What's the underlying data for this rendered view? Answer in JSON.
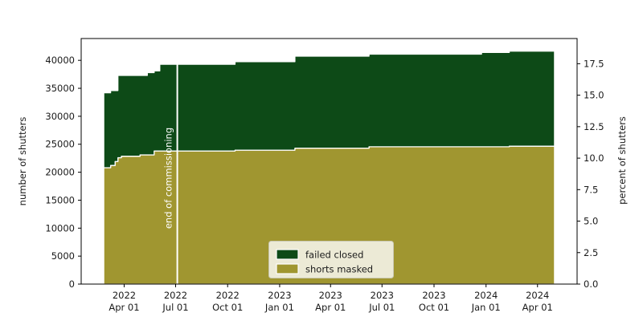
{
  "chart_data": {
    "type": "area",
    "stacked": true,
    "step": true,
    "title": "",
    "xlabel": "",
    "ylabel_left": "number of shutters",
    "ylabel_right": "percent of shutters",
    "ylim_left": [
      0,
      43900
    ],
    "ylim_right": [
      0,
      19.5
    ],
    "xlim": [
      "2022-01-15",
      "2024-06-10"
    ],
    "x_start": "2022-02-24",
    "x_end": "2024-05-01",
    "y_ticks_left": [
      0,
      5000,
      10000,
      15000,
      20000,
      25000,
      30000,
      35000,
      40000
    ],
    "y_ticks_right": [
      0.0,
      2.5,
      5.0,
      7.5,
      10.0,
      12.5,
      15.0,
      17.5
    ],
    "x_ticks": [
      {
        "date": "2022-04-01",
        "year": "2022",
        "day": "Apr 01"
      },
      {
        "date": "2022-07-01",
        "year": "2022",
        "day": "Jul 01"
      },
      {
        "date": "2022-10-01",
        "year": "2022",
        "day": "Oct 01"
      },
      {
        "date": "2023-01-01",
        "year": "2023",
        "day": "Jan 01"
      },
      {
        "date": "2023-04-01",
        "year": "2023",
        "day": "Apr 01"
      },
      {
        "date": "2023-07-01",
        "year": "2023",
        "day": "Jul 01"
      },
      {
        "date": "2023-10-01",
        "year": "2023",
        "day": "Oct 01"
      },
      {
        "date": "2024-01-01",
        "year": "2024",
        "day": "Jan 01"
      },
      {
        "date": "2024-04-01",
        "year": "2024",
        "day": "Apr 01"
      }
    ],
    "series_names": [
      "shorts masked",
      "failed closed"
    ],
    "points": [
      {
        "date": "2022-02-24",
        "shorts_masked": 20800,
        "failed_closed": 13400,
        "total": 34200
      },
      {
        "date": "2022-03-08",
        "shorts_masked": 21200,
        "failed_closed": 13400,
        "total": 34600
      },
      {
        "date": "2022-03-16",
        "shorts_masked": 21900,
        "failed_closed": 12700,
        "total": 34600
      },
      {
        "date": "2022-03-21",
        "shorts_masked": 22600,
        "failed_closed": 14700,
        "total": 37300
      },
      {
        "date": "2022-03-27",
        "shorts_masked": 22850,
        "failed_closed": 14450,
        "total": 37300
      },
      {
        "date": "2022-04-29",
        "shorts_masked": 23100,
        "failed_closed": 14200,
        "total": 37300
      },
      {
        "date": "2022-05-12",
        "shorts_masked": 23100,
        "failed_closed": 14700,
        "total": 37800
      },
      {
        "date": "2022-05-24",
        "shorts_masked": 23800,
        "failed_closed": 14300,
        "total": 38100
      },
      {
        "date": "2022-06-03",
        "shorts_masked": 23800,
        "failed_closed": 15500,
        "total": 39300
      },
      {
        "date": "2022-10-14",
        "shorts_masked": 23950,
        "failed_closed": 15800,
        "total": 39750
      },
      {
        "date": "2023-01-28",
        "shorts_masked": 24300,
        "failed_closed": 16450,
        "total": 40750
      },
      {
        "date": "2023-06-08",
        "shorts_masked": 24550,
        "failed_closed": 16550,
        "total": 41100
      },
      {
        "date": "2023-12-24",
        "shorts_masked": 24550,
        "failed_closed": 16850,
        "total": 41400
      },
      {
        "date": "2024-02-11",
        "shorts_masked": 24650,
        "failed_closed": 17000,
        "total": 41650
      }
    ],
    "annotation": {
      "label": "end of commissioning",
      "date": "2022-07-04",
      "color": "#ffffff"
    },
    "legend": {
      "position": "lower center",
      "entries": [
        {
          "label": "failed closed",
          "color": "#0d4a17"
        },
        {
          "label": "shorts masked",
          "color": "#a09630"
        }
      ]
    },
    "colors": {
      "failed_closed": "#0d4a17",
      "shorts_masked": "#a09630",
      "edge": "#ffffff",
      "spine": "#000000",
      "legend_bg": "#ecead6"
    }
  }
}
